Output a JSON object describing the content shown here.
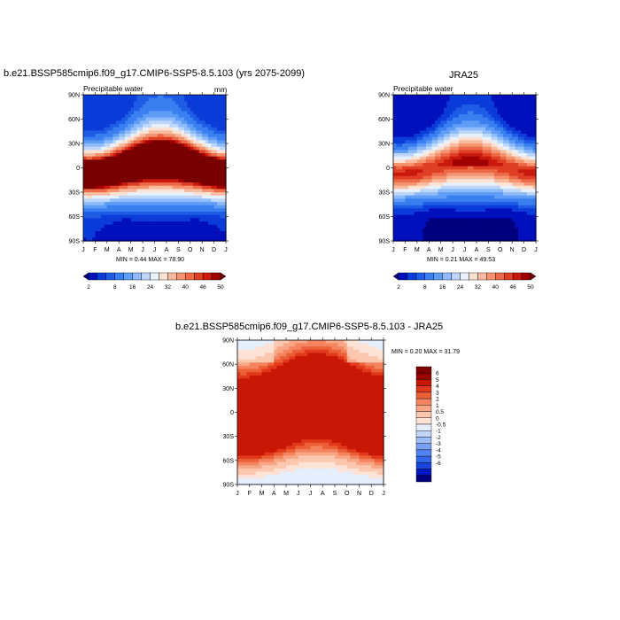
{
  "titles": {
    "model": "b.e21.BSSP585cmip6.f09_g17.CMIP6-SSP5-8.5.103 (yrs 2075-2099)",
    "obs": "JRA25",
    "diff": "b.e21.BSSP585cmip6.f09_g17.CMIP6-SSP5-8.5.103 - JRA25"
  },
  "labels": {
    "variable": "Precipitable water",
    "units": "mm"
  },
  "stats": {
    "model": "MIN =   0.44 MAX =  78.90",
    "obs": "MIN =   0.21 MAX =  49.53",
    "diff": "MIN =   0.20 MAX =  31.79"
  },
  "colors": {
    "abs_palette": [
      "#00007e",
      "#0010bd",
      "#0b3bd8",
      "#1f5ce6",
      "#3a7ff0",
      "#5f9cf6",
      "#8ebcfb",
      "#bcd7fb",
      "#e8f1fc",
      "#fbe2d3",
      "#f9bba0",
      "#f5936f",
      "#ec6a47",
      "#df3f24",
      "#c8190c",
      "#a00000",
      "#780000"
    ],
    "diff_palette": [
      "#00007e",
      "#0018c4",
      "#1846dd",
      "#3165ea",
      "#5283f2",
      "#789ff6",
      "#9fbbf8",
      "#c3d6fa",
      "#e4eefc",
      "#fde3d5",
      "#fbc7ae",
      "#f8a786",
      "#f4845f",
      "#ec6038",
      "#e1391b",
      "#c91706",
      "#9a0000",
      "#7e0000"
    ]
  },
  "chart_data": [
    {
      "type": "heatmap",
      "id": "model",
      "title": "b.e21.BSSP585cmip6.f09_g17.CMIP6-SSP5-8.5.103 (yrs 2075-2099)",
      "subtitle_left": "Precipitable water",
      "subtitle_right": "mm",
      "x_ticks": [
        "J",
        "F",
        "M",
        "A",
        "M",
        "J",
        "J",
        "A",
        "S",
        "O",
        "N",
        "D",
        "J"
      ],
      "y_ticks": [
        "90N",
        "60N",
        "30N",
        "0",
        "30S",
        "60S",
        "90S"
      ],
      "colorbar_levels": [
        2,
        4,
        6,
        8,
        12,
        16,
        20,
        24,
        28,
        32,
        36,
        40,
        43,
        46,
        48,
        50
      ],
      "colorbar_labels": [
        "2",
        "8",
        "16",
        "24",
        "32",
        "40",
        "46",
        "50"
      ],
      "min": 0.44,
      "max": 78.9,
      "shape": {
        "peak": 64,
        "amplitude": 20,
        "north_pole": 4,
        "south_pole": 2,
        "width": 24
      }
    },
    {
      "type": "heatmap",
      "id": "obs",
      "title": "JRA25",
      "subtitle_left": "Precipitable water",
      "x_ticks": [
        "J",
        "F",
        "M",
        "A",
        "M",
        "J",
        "J",
        "A",
        "S",
        "O",
        "N",
        "D",
        "J"
      ],
      "y_ticks": [
        "90N",
        "60N",
        "30N",
        "0",
        "30S",
        "60S",
        "90S"
      ],
      "colorbar_levels": [
        2,
        4,
        6,
        8,
        12,
        16,
        20,
        24,
        28,
        32,
        36,
        40,
        43,
        46,
        48,
        50
      ],
      "colorbar_labels": [
        "2",
        "8",
        "16",
        "24",
        "32",
        "40",
        "46",
        "50"
      ],
      "min": 0.21,
      "max": 49.53,
      "shape": {
        "peak": 44,
        "amplitude": 14,
        "north_pole": 2,
        "south_pole": 1,
        "width": 22
      }
    },
    {
      "type": "heatmap",
      "id": "diff",
      "title": "b.e21.BSSP585cmip6.f09_g17.CMIP6-SSP5-8.5.103 - JRA25",
      "x_ticks": [
        "J",
        "F",
        "M",
        "A",
        "M",
        "J",
        "J",
        "A",
        "S",
        "O",
        "N",
        "D",
        "J"
      ],
      "y_ticks": [
        "90N",
        "60N",
        "30N",
        "0",
        "30S",
        "60S",
        "90S"
      ],
      "colorbar_levels": [
        -6,
        -5,
        -4,
        -3,
        -2,
        -1,
        -0.5,
        0,
        0.5,
        1,
        2,
        3,
        4,
        5,
        6
      ],
      "colorbar_labels": [
        "6",
        "5",
        "4",
        "3",
        "2",
        "1",
        "0.5",
        "0",
        "-0.5",
        "-1",
        "-2",
        "-3",
        "-4",
        "-5",
        "-6"
      ],
      "min": 0.2,
      "max": 31.79
    }
  ]
}
